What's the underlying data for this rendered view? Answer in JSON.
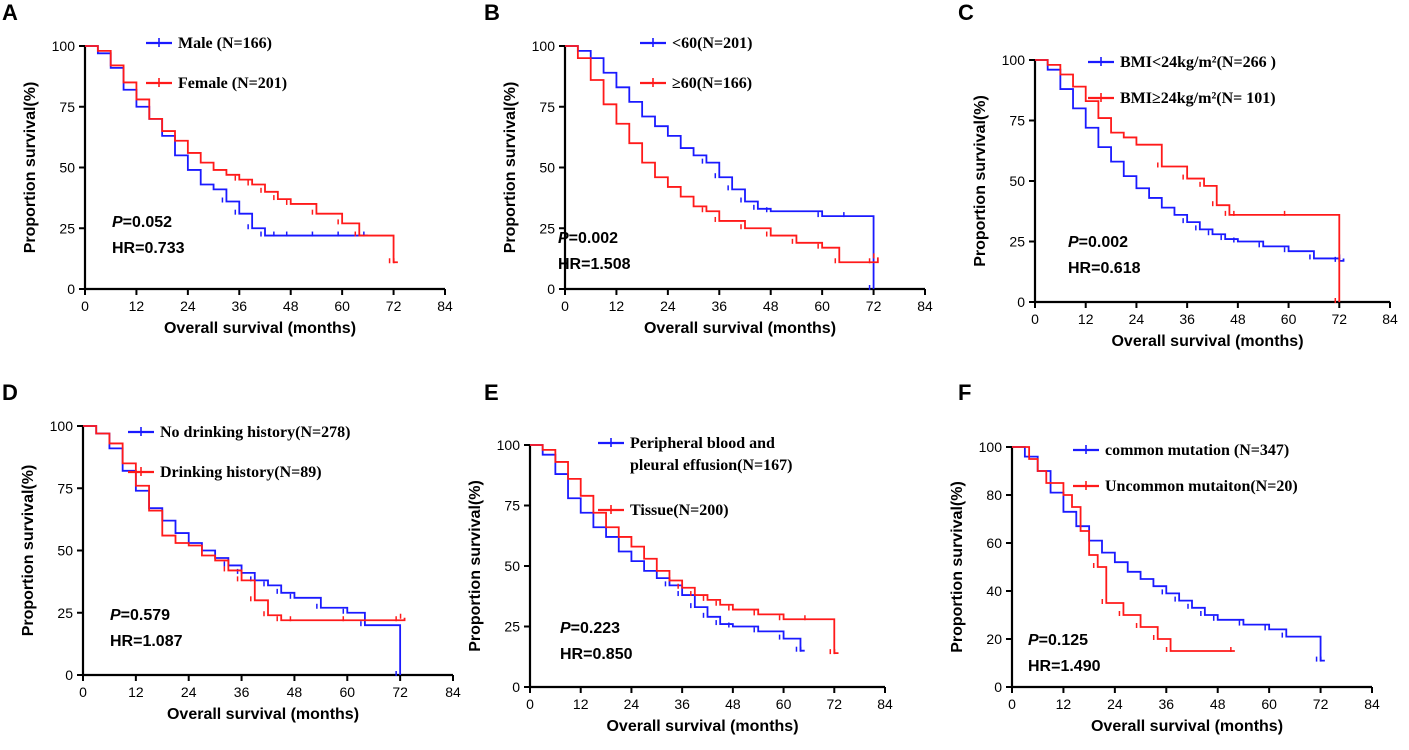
{
  "colors": {
    "blue": "#1a1aff",
    "red": "#ff1a1a"
  },
  "chart_data": [
    {
      "type": "line",
      "letter": "A",
      "ylabel": "Proportion survival(%)",
      "xlabel": "Overall survival (months)",
      "xticks": [
        "0",
        "12",
        "24",
        "36",
        "48",
        "60",
        "72",
        "84"
      ],
      "yticks": [
        "0",
        "25",
        "50",
        "75",
        "100"
      ],
      "ylim": [
        0,
        100
      ],
      "xlim": [
        0,
        84
      ],
      "p_prefix": "P",
      "p_value": "=0.052",
      "hr": "HR=0.733",
      "series": [
        {
          "name": "Male (N=166)",
          "color": "#1a1aff",
          "x": [
            0,
            3,
            6,
            9,
            12,
            15,
            18,
            21,
            24,
            27,
            30,
            33,
            36,
            39,
            42,
            45,
            48,
            54,
            60,
            66
          ],
          "y": [
            100,
            97,
            91,
            82,
            75,
            70,
            63,
            55,
            49,
            43,
            41,
            36,
            31,
            25,
            22,
            22,
            22,
            22,
            22,
            22
          ]
        },
        {
          "name": "Female (N=201)",
          "color": "#ff1a1a",
          "x": [
            0,
            3,
            6,
            9,
            12,
            15,
            18,
            21,
            24,
            27,
            30,
            33,
            36,
            39,
            42,
            45,
            48,
            54,
            60,
            64,
            72,
            73
          ],
          "y": [
            100,
            98,
            92,
            85,
            78,
            70,
            65,
            61,
            56,
            52,
            49,
            47,
            45,
            43,
            40,
            37,
            35,
            31,
            27,
            22,
            11,
            11
          ]
        }
      ]
    },
    {
      "type": "line",
      "letter": "B",
      "ylabel": "Proportion survival(%)",
      "xlabel": "Overall survival (months)",
      "xticks": [
        "0",
        "12",
        "24",
        "36",
        "48",
        "60",
        "72",
        "84"
      ],
      "yticks": [
        "0",
        "25",
        "50",
        "75",
        "100"
      ],
      "ylim": [
        0,
        100
      ],
      "xlim": [
        0,
        84
      ],
      "p_prefix": "P",
      "p_value": "=0.002",
      "hr": "HR=1.508",
      "series": [
        {
          "name": "<60(N=201)",
          "color": "#1a1aff",
          "x": [
            0,
            3,
            6,
            9,
            12,
            15,
            18,
            21,
            24,
            27,
            30,
            33,
            36,
            39,
            42,
            45,
            48,
            60,
            66,
            72
          ],
          "y": [
            100,
            98,
            95,
            89,
            83,
            77,
            71,
            67,
            63,
            58,
            55,
            52,
            46,
            41,
            36,
            33,
            32,
            30,
            30,
            0
          ]
        },
        {
          "name": "≥60(N=166)",
          "color": "#ff1a1a",
          "x": [
            0,
            3,
            6,
            9,
            12,
            15,
            18,
            21,
            24,
            27,
            30,
            33,
            36,
            42,
            48,
            54,
            60,
            64,
            72,
            73
          ],
          "y": [
            100,
            95,
            86,
            76,
            68,
            60,
            52,
            46,
            42,
            38,
            34,
            32,
            28,
            25,
            22,
            19,
            17,
            11,
            11,
            13
          ]
        }
      ]
    },
    {
      "type": "line",
      "letter": "C",
      "ylabel": "Proportion survival(%)",
      "xlabel": "Overall survival (months)",
      "xticks": [
        "0",
        "12",
        "24",
        "36",
        "48",
        "60",
        "72",
        "84"
      ],
      "yticks": [
        "0",
        "25",
        "50",
        "75",
        "100"
      ],
      "ylim": [
        0,
        100
      ],
      "xlim": [
        0,
        84
      ],
      "p_prefix": "P",
      "p_value": "=0.002",
      "hr": "HR=0.618",
      "series": [
        {
          "name": "BMI<24kg/m²(N=266 )",
          "color": "#1a1aff",
          "x": [
            0,
            3,
            6,
            9,
            12,
            15,
            18,
            21,
            24,
            27,
            30,
            33,
            36,
            39,
            42,
            45,
            48,
            54,
            60,
            66,
            72,
            73
          ],
          "y": [
            100,
            96,
            88,
            80,
            72,
            64,
            58,
            52,
            47,
            43,
            39,
            36,
            33,
            30,
            28,
            26,
            25,
            23,
            21,
            18,
            17,
            18
          ]
        },
        {
          "name": "BMI≥24kg/m²(N= 101)",
          "color": "#ff1a1a",
          "x": [
            0,
            3,
            6,
            9,
            12,
            15,
            18,
            21,
            24,
            30,
            36,
            40,
            43,
            46,
            48,
            60,
            72
          ],
          "y": [
            100,
            98,
            94,
            89,
            83,
            76,
            70,
            68,
            65,
            56,
            51,
            48,
            40,
            36,
            36,
            36,
            0
          ]
        }
      ]
    },
    {
      "type": "line",
      "letter": "D",
      "ylabel": "Proportion survival(%)",
      "xlabel": "Overall survival (months)",
      "xticks": [
        "0",
        "12",
        "24",
        "36",
        "48",
        "60",
        "72",
        "84"
      ],
      "yticks": [
        "0",
        "25",
        "50",
        "75",
        "100"
      ],
      "ylim": [
        0,
        100
      ],
      "xlim": [
        0,
        84
      ],
      "p_prefix": "P",
      "p_value": "=0.579",
      "hr": "HR=1.087",
      "series": [
        {
          "name": "No drinking history(N=278)",
          "color": "#1a1aff",
          "x": [
            0,
            3,
            6,
            9,
            12,
            15,
            18,
            21,
            24,
            27,
            30,
            33,
            36,
            39,
            42,
            45,
            48,
            54,
            60,
            64,
            72
          ],
          "y": [
            100,
            97,
            91,
            82,
            74,
            67,
            62,
            57,
            53,
            50,
            47,
            44,
            41,
            38,
            36,
            33,
            31,
            27,
            25,
            20,
            0
          ]
        },
        {
          "name": "Drinking history(N=89)",
          "color": "#ff1a1a",
          "x": [
            0,
            3,
            6,
            9,
            12,
            15,
            18,
            21,
            24,
            27,
            30,
            33,
            36,
            39,
            42,
            45,
            48,
            60,
            72,
            73
          ],
          "y": [
            100,
            97,
            93,
            85,
            76,
            66,
            56,
            53,
            52,
            48,
            46,
            42,
            38,
            30,
            24,
            22,
            22,
            22,
            22,
            23
          ]
        }
      ]
    },
    {
      "type": "line",
      "letter": "E",
      "ylabel": "Proportion survival(%)",
      "xlabel": "Overall survival (months)",
      "xticks": [
        "0",
        "12",
        "24",
        "36",
        "48",
        "60",
        "72",
        "84"
      ],
      "yticks": [
        "0",
        "25",
        "50",
        "75",
        "100"
      ],
      "ylim": [
        0,
        100
      ],
      "xlim": [
        0,
        84
      ],
      "p_prefix": "P",
      "p_value": "=0.223",
      "hr": "HR=0.850",
      "series": [
        {
          "name": "Peripheral blood and",
          "name2": " pleural effusion(N=167)",
          "color": "#1a1aff",
          "x": [
            0,
            3,
            6,
            9,
            12,
            15,
            18,
            21,
            24,
            27,
            30,
            33,
            36,
            39,
            42,
            45,
            48,
            54,
            60,
            64,
            65
          ],
          "y": [
            100,
            96,
            88,
            78,
            72,
            66,
            62,
            56,
            52,
            48,
            45,
            42,
            38,
            33,
            29,
            26,
            25,
            23,
            20,
            15,
            15
          ]
        },
        {
          "name": "Tissue(N=200)",
          "color": "#ff1a1a",
          "x": [
            0,
            3,
            6,
            9,
            12,
            15,
            18,
            21,
            24,
            27,
            30,
            33,
            36,
            39,
            42,
            45,
            48,
            54,
            60,
            66,
            72,
            73
          ],
          "y": [
            100,
            98,
            93,
            86,
            79,
            72,
            66,
            62,
            58,
            53,
            48,
            44,
            41,
            38,
            36,
            34,
            32,
            30,
            28,
            28,
            14,
            14
          ]
        }
      ]
    },
    {
      "type": "line",
      "letter": "F",
      "ylabel": "Proportion survival(%)",
      "xlabel": "Overall survival (months)",
      "xticks": [
        "0",
        "12",
        "24",
        "36",
        "48",
        "60",
        "72",
        "84"
      ],
      "yticks": [
        "0",
        "20",
        "40",
        "60",
        "80",
        "100"
      ],
      "ylim": [
        0,
        100
      ],
      "xlim": [
        0,
        84
      ],
      "p_prefix": "P",
      "p_value": "=0.125",
      "hr": "HR=1.490",
      "series": [
        {
          "name": "common mutation (N=347)",
          "color": "#1a1aff",
          "x": [
            0,
            3,
            6,
            9,
            12,
            15,
            18,
            21,
            24,
            27,
            30,
            33,
            36,
            39,
            42,
            45,
            48,
            54,
            60,
            64,
            72,
            73
          ],
          "y": [
            100,
            96,
            90,
            81,
            73,
            67,
            61,
            56,
            52,
            48,
            45,
            42,
            39,
            36,
            33,
            30,
            28,
            26,
            24,
            21,
            11,
            11
          ]
        },
        {
          "name": "Uncommon mutaiton(N=20)",
          "color": "#ff1a1a",
          "x": [
            0,
            4,
            6,
            8,
            12,
            14,
            16,
            18,
            20,
            22,
            26,
            30,
            34,
            37,
            52
          ],
          "y": [
            100,
            95,
            90,
            85,
            80,
            75,
            65,
            55,
            50,
            35,
            30,
            25,
            20,
            15,
            15
          ]
        }
      ]
    }
  ]
}
